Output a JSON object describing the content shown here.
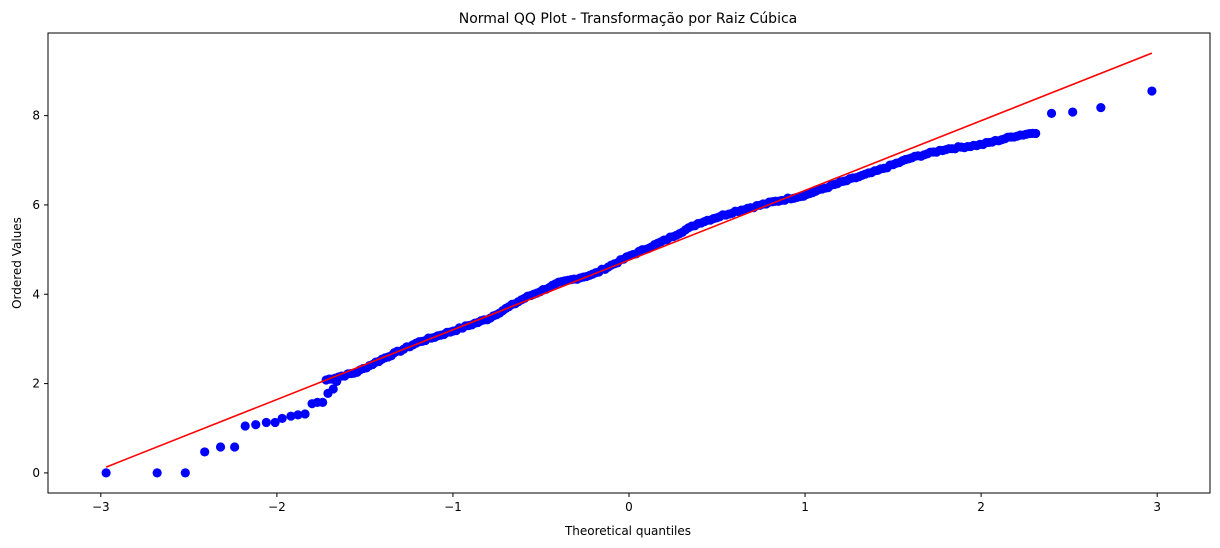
{
  "chart_data": {
    "type": "scatter",
    "title": "Normal QQ Plot - Transformação por Raiz Cúbica",
    "xlabel": "Theoretical quantiles",
    "ylabel": "Ordered Values",
    "xlim": [
      -3.3,
      3.3
    ],
    "ylim": [
      -0.45,
      9.85
    ],
    "xticks": [
      -3,
      -2,
      -1,
      0,
      1,
      2,
      3
    ],
    "yticks": [
      0,
      2,
      4,
      6,
      8
    ],
    "xtick_labels": [
      "−3",
      "−2",
      "−1",
      "0",
      "1",
      "2",
      "3"
    ],
    "ytick_labels": [
      "0",
      "2",
      "4",
      "6",
      "8"
    ],
    "grid": false,
    "legend": "none",
    "point_color": "#0000ff",
    "line_color": "#ff0000",
    "fit_line": {
      "x": [
        -2.97,
        2.97
      ],
      "y": [
        0.13,
        9.4
      ]
    },
    "curve_knots": [
      [
        -1.72,
        2.08
      ],
      [
        -1.55,
        2.25
      ],
      [
        -1.4,
        2.55
      ],
      [
        -1.2,
        2.92
      ],
      [
        -1.0,
        3.18
      ],
      [
        -0.8,
        3.45
      ],
      [
        -0.6,
        3.9
      ],
      [
        -0.4,
        4.25
      ],
      [
        -0.2,
        4.45
      ],
      [
        0.0,
        4.85
      ],
      [
        0.2,
        5.2
      ],
      [
        0.4,
        5.6
      ],
      [
        0.6,
        5.85
      ],
      [
        0.8,
        6.05
      ],
      [
        1.0,
        6.22
      ],
      [
        1.2,
        6.5
      ],
      [
        1.4,
        6.75
      ],
      [
        1.6,
        7.05
      ],
      [
        1.8,
        7.25
      ],
      [
        2.0,
        7.35
      ],
      [
        2.2,
        7.55
      ],
      [
        2.31,
        7.62
      ]
    ],
    "points": [
      [
        -2.97,
        0.0
      ],
      [
        -2.68,
        0.0
      ],
      [
        -2.52,
        0.0
      ],
      [
        -2.41,
        0.47
      ],
      [
        -2.32,
        0.58
      ],
      [
        -2.24,
        0.58
      ],
      [
        -2.18,
        1.05
      ],
      [
        -2.12,
        1.08
      ],
      [
        -2.06,
        1.13
      ],
      [
        -2.01,
        1.13
      ],
      [
        -1.97,
        1.22
      ],
      [
        -1.92,
        1.27
      ],
      [
        -1.88,
        1.3
      ],
      [
        -1.84,
        1.32
      ],
      [
        -1.8,
        1.55
      ],
      [
        -1.77,
        1.58
      ],
      [
        -1.74,
        1.58
      ],
      [
        -1.71,
        1.78
      ],
      [
        -1.68,
        1.88
      ],
      [
        -1.66,
        2.05
      ],
      [
        2.4,
        8.05
      ],
      [
        2.52,
        8.08
      ],
      [
        2.68,
        8.18
      ],
      [
        2.97,
        8.55
      ]
    ],
    "curve_samples": 230
  }
}
